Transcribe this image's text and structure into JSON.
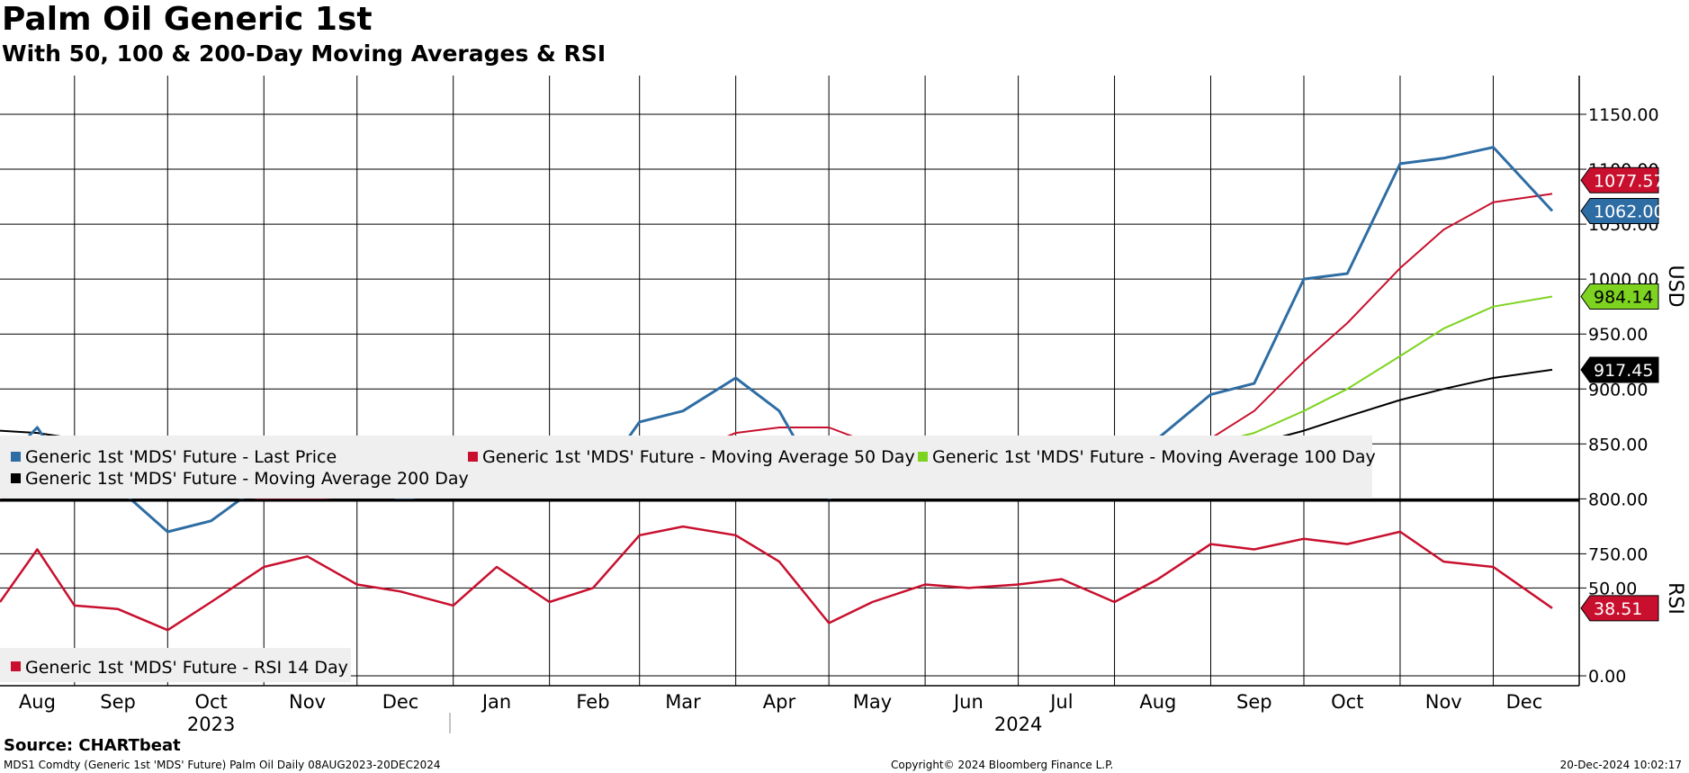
{
  "title": "Palm Oil Generic 1st",
  "subtitle": "With 50, 100 & 200-Day Moving Averages & RSI",
  "source": "Source: CHARTbeat",
  "footer": {
    "left": "MDS1 Comdty (Generic 1st 'MDS' Future) Palm Oil  Daily 08AUG2023-20DEC2024",
    "center": "Copyright© 2024 Bloomberg Finance L.P.",
    "right": "20-Dec-2024 10:02:17"
  },
  "colors": {
    "last_price": "#2e6da4",
    "ma50": "#c8102e",
    "ma100": "#7ed321",
    "ma200": "#000000",
    "rsi": "#c8102e"
  },
  "chart_data": [
    {
      "type": "line",
      "panel": "price",
      "ylabel": "USD",
      "ylim": [
        710,
        1180
      ],
      "yticks": [
        "1150.00",
        "1100.00",
        "1050.00",
        "1000.00",
        "950.00",
        "900.00",
        "850.00",
        "800.00",
        "750.00"
      ],
      "xticks": [
        "Aug",
        "Sep",
        "Oct",
        "Nov",
        "Dec",
        "Jan",
        "Feb",
        "Mar",
        "Apr",
        "May",
        "Jun",
        "Jul",
        "Aug",
        "Sep",
        "Oct",
        "Nov",
        "Dec"
      ],
      "years": [
        "2023",
        "2024"
      ],
      "x": [
        "2023-08-08",
        "2023-08-20",
        "2023-09-01",
        "2023-09-15",
        "2023-10-01",
        "2023-10-15",
        "2023-11-01",
        "2023-11-15",
        "2023-12-01",
        "2023-12-15",
        "2024-01-01",
        "2024-01-15",
        "2024-02-01",
        "2024-02-15",
        "2024-03-01",
        "2024-03-15",
        "2024-04-01",
        "2024-04-15",
        "2024-05-01",
        "2024-05-15",
        "2024-06-01",
        "2024-06-15",
        "2024-07-01",
        "2024-07-15",
        "2024-08-01",
        "2024-08-15",
        "2024-09-01",
        "2024-09-15",
        "2024-10-01",
        "2024-10-15",
        "2024-11-01",
        "2024-11-15",
        "2024-12-01",
        "2024-12-20"
      ],
      "legend_placement": "bottom-left",
      "series": [
        {
          "name": "Generic 1st 'MDS' Future - Last Price",
          "color_key": "last_price",
          "last_label": "1062.00",
          "values": [
            830,
            865,
            815,
            810,
            770,
            780,
            815,
            830,
            810,
            800,
            805,
            820,
            805,
            810,
            870,
            880,
            910,
            880,
            800,
            825,
            845,
            835,
            845,
            845,
            835,
            855,
            895,
            905,
            1000,
            1005,
            1105,
            1110,
            1120,
            1062
          ]
        },
        {
          "name": "Generic 1st 'MDS' Future - Moving Average 50 Day",
          "color_key": "ma50",
          "last_label": "1077.57",
          "values": [
            800,
            830,
            835,
            830,
            812,
            805,
            800,
            800,
            802,
            805,
            808,
            812,
            805,
            805,
            815,
            840,
            860,
            865,
            865,
            850,
            835,
            835,
            838,
            842,
            842,
            845,
            855,
            880,
            925,
            960,
            1010,
            1045,
            1070,
            1077.57
          ]
        },
        {
          "name": "Generic 1st 'MDS' Future - Moving Average 100 Day",
          "color_key": "ma100",
          "last_label": "984.14",
          "values": [
            815,
            810,
            808,
            805,
            806,
            808,
            815,
            820,
            818,
            812,
            808,
            808,
            805,
            805,
            810,
            820,
            830,
            835,
            838,
            840,
            842,
            845,
            848,
            848,
            845,
            845,
            850,
            860,
            880,
            900,
            930,
            955,
            975,
            984.14
          ]
        },
        {
          "name": "Generic 1st 'MDS' Future - Moving Average 200 Day",
          "color_key": "ma200",
          "last_label": "917.45",
          "values": [
            862,
            860,
            855,
            848,
            840,
            832,
            825,
            820,
            815,
            812,
            810,
            808,
            806,
            808,
            810,
            815,
            820,
            822,
            824,
            826,
            826,
            826,
            828,
            830,
            833,
            836,
            842,
            850,
            862,
            875,
            890,
            900,
            910,
            917.45
          ]
        }
      ]
    },
    {
      "type": "line",
      "panel": "rsi",
      "ylabel": "RSI",
      "ylim": [
        0,
        100
      ],
      "yticks": [
        "50.00",
        "0.00"
      ],
      "series": [
        {
          "name": "Generic 1st 'MDS' Future - RSI 14 Day",
          "color_key": "rsi",
          "last_label": "38.51",
          "values": [
            42,
            72,
            40,
            38,
            26,
            42,
            62,
            68,
            52,
            48,
            40,
            62,
            42,
            50,
            80,
            85,
            80,
            65,
            30,
            42,
            52,
            50,
            52,
            55,
            42,
            55,
            75,
            72,
            78,
            75,
            82,
            65,
            62,
            38.51
          ]
        }
      ]
    }
  ]
}
